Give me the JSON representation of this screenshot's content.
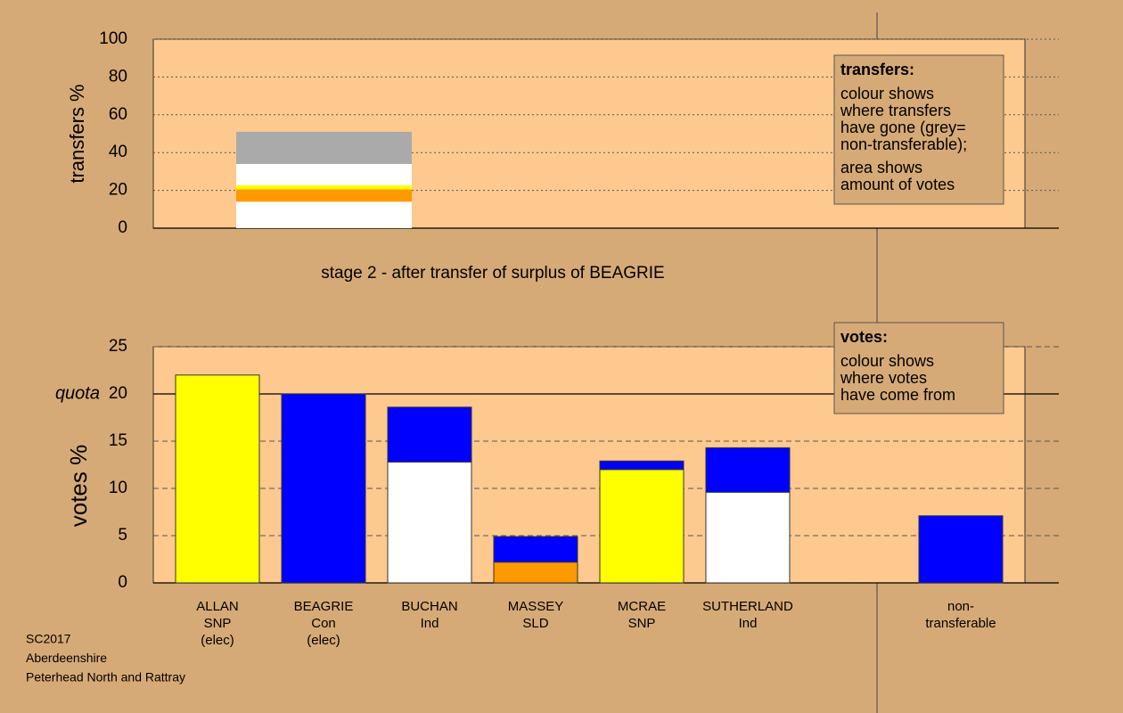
{
  "chart_data": [
    {
      "type": "stacked-bar",
      "ylabel": "transfers %",
      "ylim": [
        0,
        100
      ],
      "yticks": [
        0,
        20,
        40,
        60,
        80,
        100
      ],
      "grid": true,
      "stacks": [
        [
          {
            "value": 14,
            "color": "#ffffff"
          },
          {
            "value": 6.5,
            "color": "#ff9900"
          },
          {
            "value": 2.2,
            "color": "#ffff00"
          },
          {
            "value": 11.3,
            "color": "#ffffff"
          },
          {
            "value": 17,
            "color": "#aaaaaa"
          }
        ]
      ],
      "note": {
        "title": "transfers:",
        "paragraphs": [
          [
            "colour shows",
            "where transfers",
            "have gone (grey=",
            "non-transferable);"
          ],
          [
            "area shows",
            "amount of votes"
          ]
        ]
      }
    },
    {
      "type": "stacked-bar",
      "title": "stage 2 - after transfer of surplus of BEAGRIE",
      "ylabel": "votes %",
      "ylim": [
        0,
        25
      ],
      "yticks": [
        0,
        5,
        10,
        15,
        20,
        25
      ],
      "grid": true,
      "quota": {
        "value": 20,
        "label": "quota"
      },
      "categories": [
        [
          "ALLAN",
          "SNP",
          "(elec)"
        ],
        [
          "BEAGRIE",
          "Con",
          "(elec)"
        ],
        [
          "BUCHAN",
          "Ind"
        ],
        [
          "MASSEY",
          "SLD"
        ],
        [
          "MCRAE",
          "SNP"
        ],
        [
          "SUTHERLAND",
          "Ind"
        ],
        [
          "non-",
          "transferable"
        ]
      ],
      "stacks": [
        [
          {
            "value": 22,
            "color": "#ffff00"
          }
        ],
        [
          {
            "value": 20,
            "color": "#0000ff"
          }
        ],
        [
          {
            "value": 12.8,
            "color": "#ffffff"
          },
          {
            "value": 5.8,
            "color": "#0000ff"
          }
        ],
        [
          {
            "value": 2.2,
            "color": "#ff9900"
          },
          {
            "value": 2.7,
            "color": "#0000ff"
          }
        ],
        [
          {
            "value": 12,
            "color": "#ffff00"
          },
          {
            "value": 0.9,
            "color": "#0000ff"
          }
        ],
        [
          {
            "value": 9.6,
            "color": "#ffffff"
          },
          {
            "value": 4.7,
            "color": "#0000ff"
          }
        ],
        [
          {
            "value": 7.1,
            "color": "#0000ff"
          }
        ]
      ],
      "note": {
        "title": "votes:",
        "paragraphs": [
          [
            "colour shows",
            "where votes",
            "have come from"
          ]
        ]
      }
    }
  ],
  "footer": [
    "SC2017",
    "Aberdeenshire",
    "Peterhead North and Rattray"
  ]
}
